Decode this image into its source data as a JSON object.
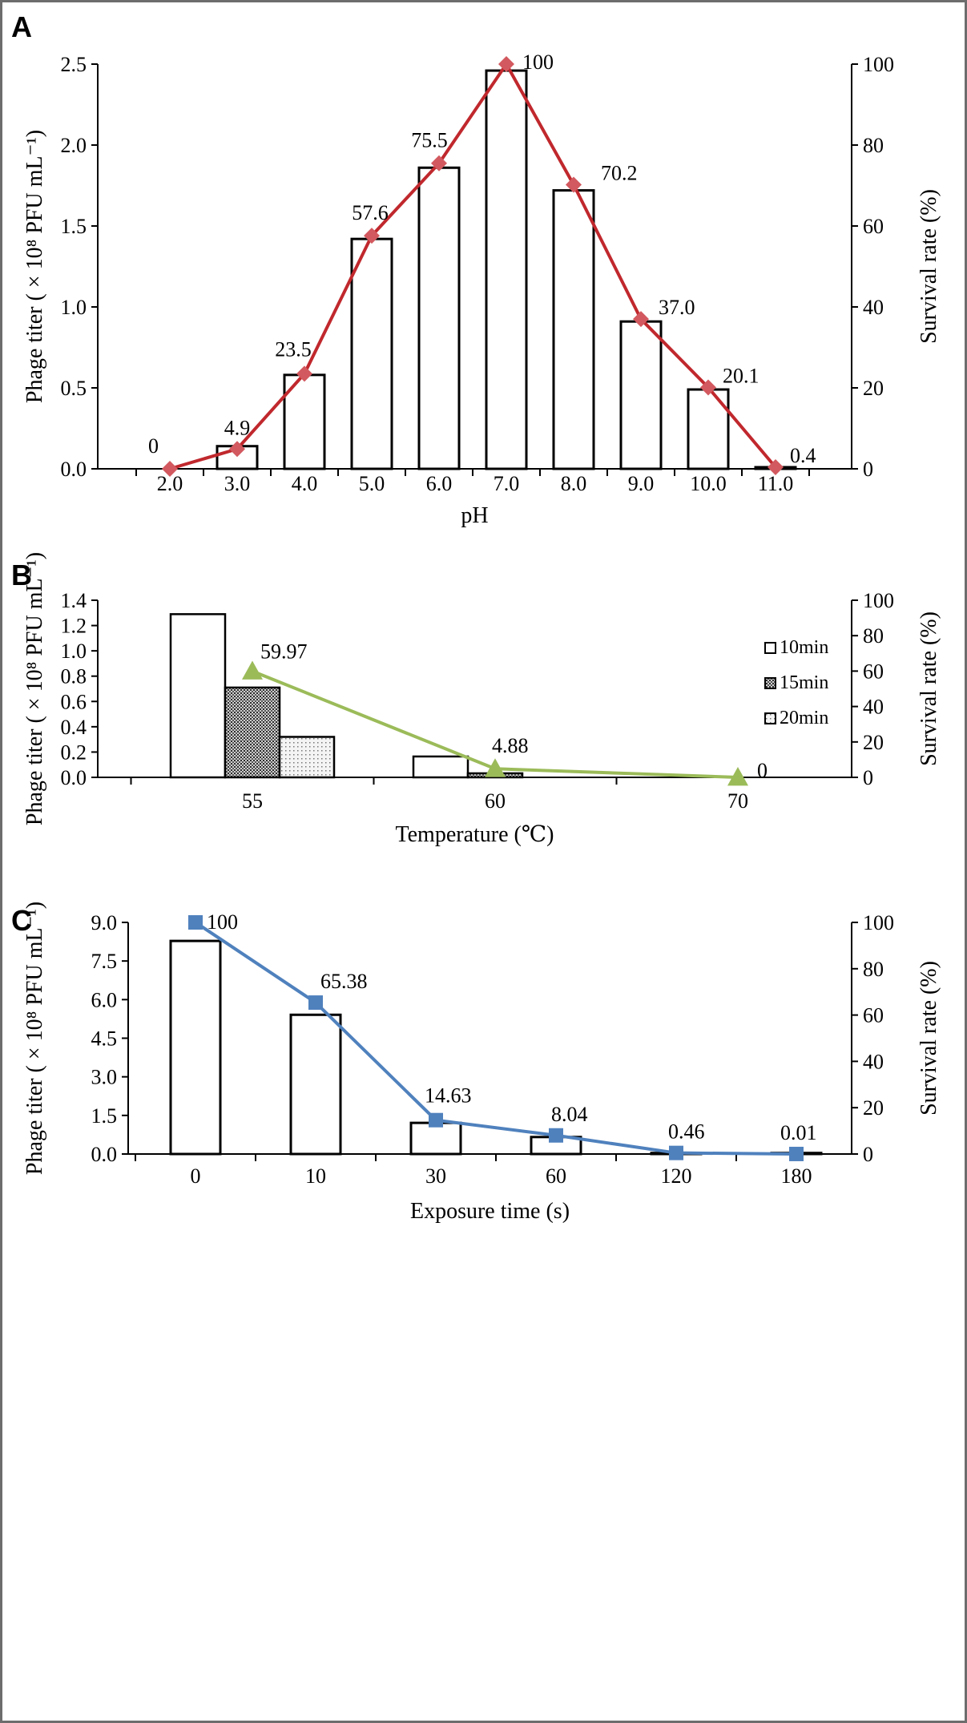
{
  "chart_data": [
    {
      "panel": "A",
      "type": "bar",
      "xlabel": "pH",
      "ylabel": "Phage titer ( × 10⁸ PFU mL⁻¹)",
      "y2label": "Survival rate (%)",
      "categories": [
        "2.0",
        "3.0",
        "4.0",
        "5.0",
        "6.0",
        "7.0",
        "8.0",
        "9.0",
        "10.0",
        "11.0"
      ],
      "bar_values": [
        0,
        0.14,
        0.58,
        1.42,
        1.86,
        2.46,
        1.72,
        0.91,
        0.49,
        0.01
      ],
      "line_values": [
        0,
        4.9,
        23.5,
        57.6,
        75.5,
        100,
        70.2,
        37.0,
        20.1,
        0.4
      ],
      "line_labels": [
        "0",
        "4.9",
        "23.5",
        "57.6",
        "75.5",
        "100",
        "70.2",
        "37.0",
        "20.1",
        "0.4"
      ],
      "ylim": [
        0,
        2.5
      ],
      "yticks": [
        "0.0",
        "0.5",
        "1.0",
        "1.5",
        "2.0",
        "2.5"
      ],
      "y2lim": [
        0,
        100
      ],
      "y2ticks": [
        "0",
        "20",
        "40",
        "60",
        "80",
        "100"
      ],
      "line_color": "#c0282d",
      "marker_color": "#d2595f",
      "marker": "diamond"
    },
    {
      "panel": "B",
      "type": "bar",
      "xlabel": "Temperature (℃)",
      "ylabel": "Phage titer ( × 10⁸ PFU mL⁻¹)",
      "y2label": "Survival rate (%)",
      "categories": [
        "55",
        "60",
        "70"
      ],
      "series": [
        {
          "name": "10min",
          "values": [
            1.29,
            0.165,
            0
          ],
          "fill": "white"
        },
        {
          "name": "15min",
          "values": [
            0.71,
            0.032,
            0
          ],
          "fill": "dark-dots"
        },
        {
          "name": "20min",
          "values": [
            0.32,
            0,
            0
          ],
          "fill": "light-dots"
        }
      ],
      "line_values": [
        59.97,
        4.88,
        0
      ],
      "line_labels": [
        "59.97",
        "4.88",
        "0"
      ],
      "ylim": [
        0,
        1.4
      ],
      "yticks": [
        "0.0",
        "0.2",
        "0.4",
        "0.6",
        "0.8",
        "1.0",
        "1.2",
        "1.4"
      ],
      "y2lim": [
        0,
        100
      ],
      "y2ticks": [
        "0",
        "20",
        "40",
        "60",
        "80",
        "100"
      ],
      "legend_position": "top-right",
      "line_color": "#9bbb59",
      "marker": "triangle"
    },
    {
      "panel": "C",
      "type": "bar",
      "xlabel": "Exposure time (s)",
      "ylabel": "Phage titer ( × 10⁸ PFU mL⁻¹)",
      "y2label": "Survival rate (%)",
      "categories": [
        "0",
        "10",
        "30",
        "60",
        "120",
        "180"
      ],
      "bar_values": [
        8.28,
        5.41,
        1.21,
        0.66,
        0.04,
        0.04
      ],
      "line_values": [
        100,
        65.38,
        14.63,
        8.04,
        0.46,
        0.01
      ],
      "line_labels": [
        "100",
        "65.38",
        "14.63",
        "8.04",
        "0.46",
        "0.01"
      ],
      "ylim": [
        0,
        9.0
      ],
      "yticks": [
        "0.0",
        "1.5",
        "3.0",
        "4.5",
        "6.0",
        "7.5",
        "9.0"
      ],
      "y2lim": [
        0,
        100
      ],
      "y2ticks": [
        "0",
        "20",
        "40",
        "60",
        "80",
        "100"
      ],
      "line_color": "#4f81bd",
      "marker": "square"
    }
  ]
}
